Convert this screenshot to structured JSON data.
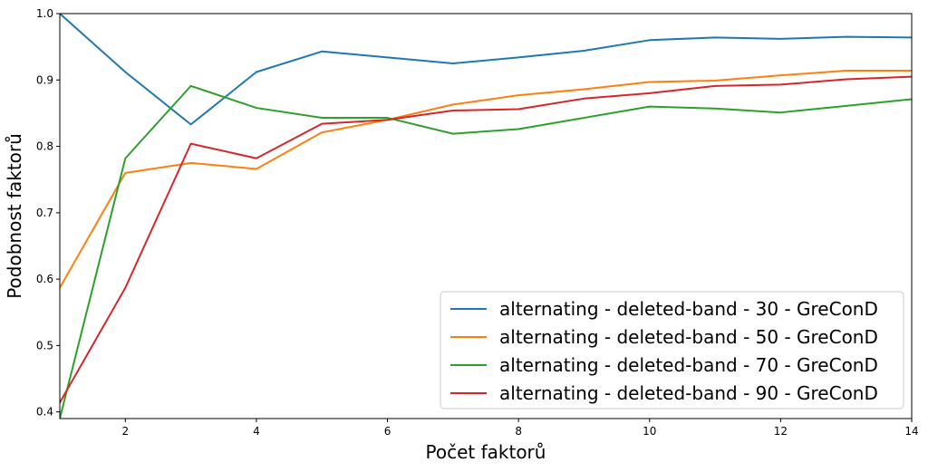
{
  "chart_data": {
    "type": "line",
    "title": "",
    "xlabel": "Počet faktorů",
    "ylabel": "Podobnost faktorů",
    "xlim": [
      1,
      14
    ],
    "ylim": [
      0.39,
      1.0
    ],
    "x_ticks": [
      "2",
      "4",
      "6",
      "8",
      "10",
      "12",
      "14"
    ],
    "y_ticks": [
      "0.4",
      "0.5",
      "0.6",
      "0.7",
      "0.8",
      "0.9",
      "1.0"
    ],
    "grid": false,
    "legend_position": "lower-right",
    "x": [
      1,
      2,
      3,
      4,
      5,
      6,
      7,
      8,
      9,
      10,
      11,
      12,
      13,
      14
    ],
    "series": [
      {
        "name": "alternating - deleted-band - 30 - GreConD",
        "color": "#1f77b4",
        "values": [
          1.0,
          0.912,
          0.833,
          0.912,
          0.943,
          0.934,
          0.925,
          0.934,
          0.944,
          0.96,
          0.964,
          0.962,
          0.965,
          0.964
        ]
      },
      {
        "name": "alternating - deleted-band - 50 - GreConD",
        "color": "#ff7f0e",
        "values": [
          0.587,
          0.76,
          0.775,
          0.766,
          0.821,
          0.84,
          0.863,
          0.877,
          0.886,
          0.897,
          0.899,
          0.907,
          0.914,
          0.914
        ]
      },
      {
        "name": "alternating - deleted-band - 70 - GreConD",
        "color": "#2ca02c",
        "values": [
          0.39,
          0.782,
          0.891,
          0.858,
          0.843,
          0.843,
          0.819,
          0.826,
          0.843,
          0.86,
          0.857,
          0.851,
          0.861,
          0.871
        ]
      },
      {
        "name": "alternating - deleted-band - 90 - GreConD",
        "color": "#d62728",
        "values": [
          0.414,
          0.587,
          0.804,
          0.782,
          0.834,
          0.84,
          0.854,
          0.856,
          0.872,
          0.88,
          0.891,
          0.893,
          0.901,
          0.905
        ]
      }
    ]
  }
}
